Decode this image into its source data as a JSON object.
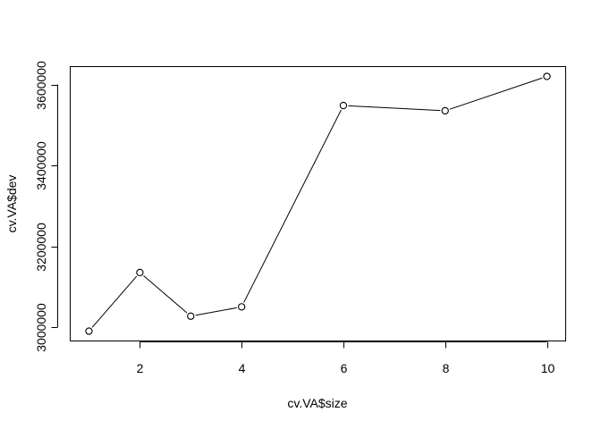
{
  "chart_data": {
    "type": "line",
    "markers": "open-circle",
    "title": "",
    "xlabel": "cv.VA$size",
    "ylabel": "cv.VA$dev",
    "x": [
      1,
      2,
      3,
      4,
      6,
      8,
      10
    ],
    "y": [
      2990000,
      3135000,
      3027000,
      3050000,
      3548000,
      3535000,
      3620000
    ],
    "xlim": [
      0.64,
      10.36
    ],
    "ylim": [
      2966800,
      3643200
    ],
    "xticks": [
      2,
      4,
      6,
      8,
      10
    ],
    "yticks": [
      3000000,
      3200000,
      3400000,
      3600000
    ],
    "xtick_labels": [
      "2",
      "4",
      "6",
      "8",
      "10"
    ],
    "ytick_labels": [
      "3000000",
      "3200000",
      "3400000",
      "3600000"
    ],
    "grid": false,
    "legend": "none",
    "colors": {
      "line": "#000000",
      "marker_fill": "#ffffff",
      "background": "#ffffff"
    }
  }
}
